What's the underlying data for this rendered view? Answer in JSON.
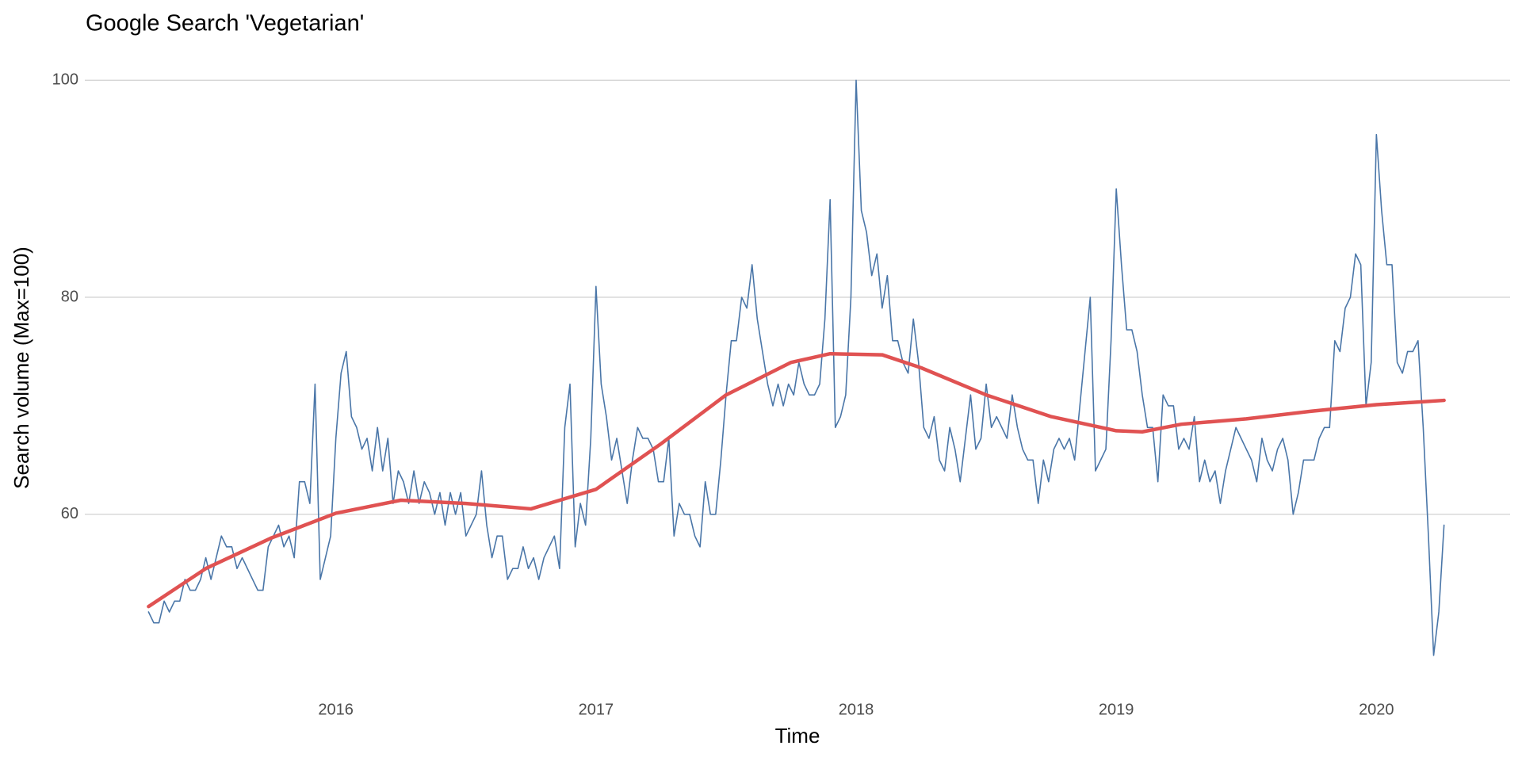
{
  "chart_data": {
    "type": "line",
    "title": "Google Search 'Vegetarian'",
    "x_label": "Time",
    "y_label": "Search volume (Max=100)",
    "xlim": [
      2015.035,
      2020.514
    ],
    "xticks": [
      2016,
      2017,
      2018,
      2019,
      2020
    ],
    "ylim": [
      44.35,
      102.65
    ],
    "yticks": [
      60,
      80,
      100
    ],
    "grid": true,
    "series": [
      {
        "color": "#4a76a8",
        "x": [
          2015.28,
          2015.3,
          2015.32,
          2015.34,
          2015.36,
          2015.38,
          2015.4,
          2015.42,
          2015.44,
          2015.46,
          2015.48,
          2015.5,
          2015.52,
          2015.54,
          2015.56,
          2015.58,
          2015.6,
          2015.62,
          2015.64,
          2015.66,
          2015.68,
          2015.7,
          2015.72,
          2015.74,
          2015.76,
          2015.78,
          2015.8,
          2015.82,
          2015.84,
          2015.86,
          2015.88,
          2015.9,
          2015.92,
          2015.94,
          2015.96,
          2015.98,
          2016.0,
          2016.02,
          2016.04,
          2016.06,
          2016.08,
          2016.1,
          2016.12,
          2016.14,
          2016.16,
          2016.18,
          2016.2,
          2016.22,
          2016.24,
          2016.26,
          2016.28,
          2016.3,
          2016.32,
          2016.34,
          2016.36,
          2016.38,
          2016.4,
          2016.42,
          2016.44,
          2016.46,
          2016.48,
          2016.5,
          2016.52,
          2016.54,
          2016.56,
          2016.58,
          2016.6,
          2016.62,
          2016.64,
          2016.66,
          2016.68,
          2016.7,
          2016.72,
          2016.74,
          2016.76,
          2016.78,
          2016.8,
          2016.82,
          2016.84,
          2016.86,
          2016.88,
          2016.9,
          2016.92,
          2016.94,
          2016.96,
          2016.98,
          2017.0,
          2017.02,
          2017.04,
          2017.06,
          2017.08,
          2017.1,
          2017.12,
          2017.14,
          2017.16,
          2017.18,
          2017.2,
          2017.22,
          2017.24,
          2017.26,
          2017.28,
          2017.3,
          2017.32,
          2017.34,
          2017.36,
          2017.38,
          2017.4,
          2017.42,
          2017.44,
          2017.46,
          2017.48,
          2017.5,
          2017.52,
          2017.54,
          2017.56,
          2017.58,
          2017.6,
          2017.62,
          2017.64,
          2017.66,
          2017.68,
          2017.7,
          2017.72,
          2017.74,
          2017.76,
          2017.78,
          2017.8,
          2017.82,
          2017.84,
          2017.86,
          2017.88,
          2017.9,
          2017.92,
          2017.94,
          2017.96,
          2017.98,
          2018.0,
          2018.02,
          2018.04,
          2018.06,
          2018.08,
          2018.1,
          2018.12,
          2018.14,
          2018.16,
          2018.18,
          2018.2,
          2018.22,
          2018.24,
          2018.26,
          2018.28,
          2018.3,
          2018.32,
          2018.34,
          2018.36,
          2018.38,
          2018.4,
          2018.42,
          2018.44,
          2018.46,
          2018.48,
          2018.5,
          2018.52,
          2018.54,
          2018.56,
          2018.58,
          2018.6,
          2018.62,
          2018.64,
          2018.66,
          2018.68,
          2018.7,
          2018.72,
          2018.74,
          2018.76,
          2018.78,
          2018.8,
          2018.82,
          2018.84,
          2018.86,
          2018.88,
          2018.9,
          2018.92,
          2018.94,
          2018.96,
          2018.98,
          2019.0,
          2019.02,
          2019.04,
          2019.06,
          2019.08,
          2019.1,
          2019.12,
          2019.14,
          2019.16,
          2019.18,
          2019.2,
          2019.22,
          2019.24,
          2019.26,
          2019.28,
          2019.3,
          2019.32,
          2019.34,
          2019.36,
          2019.38,
          2019.4,
          2019.42,
          2019.44,
          2019.46,
          2019.48,
          2019.5,
          2019.52,
          2019.54,
          2019.56,
          2019.58,
          2019.6,
          2019.62,
          2019.64,
          2019.66,
          2019.68,
          2019.7,
          2019.72,
          2019.74,
          2019.76,
          2019.78,
          2019.8,
          2019.82,
          2019.84,
          2019.86,
          2019.88,
          2019.9,
          2019.92,
          2019.94,
          2019.96,
          2019.98,
          2020.0,
          2020.02,
          2020.04,
          2020.06,
          2020.08,
          2020.1,
          2020.12,
          2020.14,
          2020.16,
          2020.18,
          2020.2,
          2020.22,
          2020.24,
          2020.26
        ],
        "values": [
          51,
          50,
          50,
          52,
          51,
          52,
          52,
          54,
          53,
          53,
          54,
          56,
          54,
          56,
          58,
          57,
          57,
          55,
          56,
          55,
          54,
          53,
          53,
          57,
          58,
          59,
          57,
          58,
          56,
          63,
          63,
          61,
          72,
          54,
          56,
          58,
          67,
          73,
          75,
          69,
          68,
          66,
          67,
          64,
          68,
          64,
          67,
          61,
          64,
          63,
          61,
          64,
          61,
          63,
          62,
          60,
          62,
          59,
          62,
          60,
          62,
          58,
          59,
          60,
          64,
          59,
          56,
          58,
          58,
          54,
          55,
          55,
          57,
          55,
          56,
          54,
          56,
          57,
          58,
          55,
          68,
          72,
          57,
          61,
          59,
          67,
          81,
          72,
          69,
          65,
          67,
          64,
          61,
          65,
          68,
          67,
          67,
          66,
          63,
          63,
          67,
          58,
          61,
          60,
          60,
          58,
          57,
          63,
          60,
          60,
          65,
          71,
          76,
          76,
          80,
          79,
          83,
          78,
          75,
          72,
          70,
          72,
          70,
          72,
          71,
          74,
          72,
          71,
          71,
          72,
          78,
          89,
          68,
          69,
          71,
          80,
          100,
          88,
          86,
          82,
          84,
          79,
          82,
          76,
          76,
          74,
          73,
          78,
          74,
          68,
          67,
          69,
          65,
          64,
          68,
          66,
          63,
          67,
          71,
          66,
          67,
          72,
          68,
          69,
          68,
          67,
          71,
          68,
          66,
          65,
          65,
          61,
          65,
          63,
          66,
          67,
          66,
          67,
          65,
          70,
          75,
          80,
          64,
          65,
          66,
          76,
          90,
          83,
          77,
          77,
          75,
          71,
          68,
          68,
          63,
          71,
          70,
          70,
          66,
          67,
          66,
          69,
          63,
          65,
          63,
          64,
          61,
          64,
          66,
          68,
          67,
          66,
          65,
          63,
          67,
          65,
          64,
          66,
          67,
          65,
          60,
          62,
          65,
          65,
          65,
          67,
          68,
          68,
          76,
          75,
          79,
          80,
          84,
          83,
          70,
          74,
          95,
          88,
          83,
          83,
          74,
          73,
          75,
          75,
          76,
          68,
          58,
          47,
          51,
          59
        ]
      },
      {
        "color": "#e05252",
        "x": [
          2015.28,
          2015.5,
          2015.75,
          2016.0,
          2016.25,
          2016.5,
          2016.75,
          2017.0,
          2017.25,
          2017.5,
          2017.75,
          2017.9,
          2018.1,
          2018.25,
          2018.5,
          2018.75,
          2019.0,
          2019.1,
          2019.25,
          2019.5,
          2019.75,
          2020.0,
          2020.26
        ],
        "values": [
          51.5,
          55,
          57.8,
          60.1,
          61.3,
          61,
          60.5,
          62.3,
          66.5,
          71,
          74,
          74.8,
          74.7,
          73.5,
          71,
          69,
          67.7,
          67.6,
          68.3,
          68.8,
          69.5,
          70.1,
          70.5
        ]
      }
    ]
  }
}
